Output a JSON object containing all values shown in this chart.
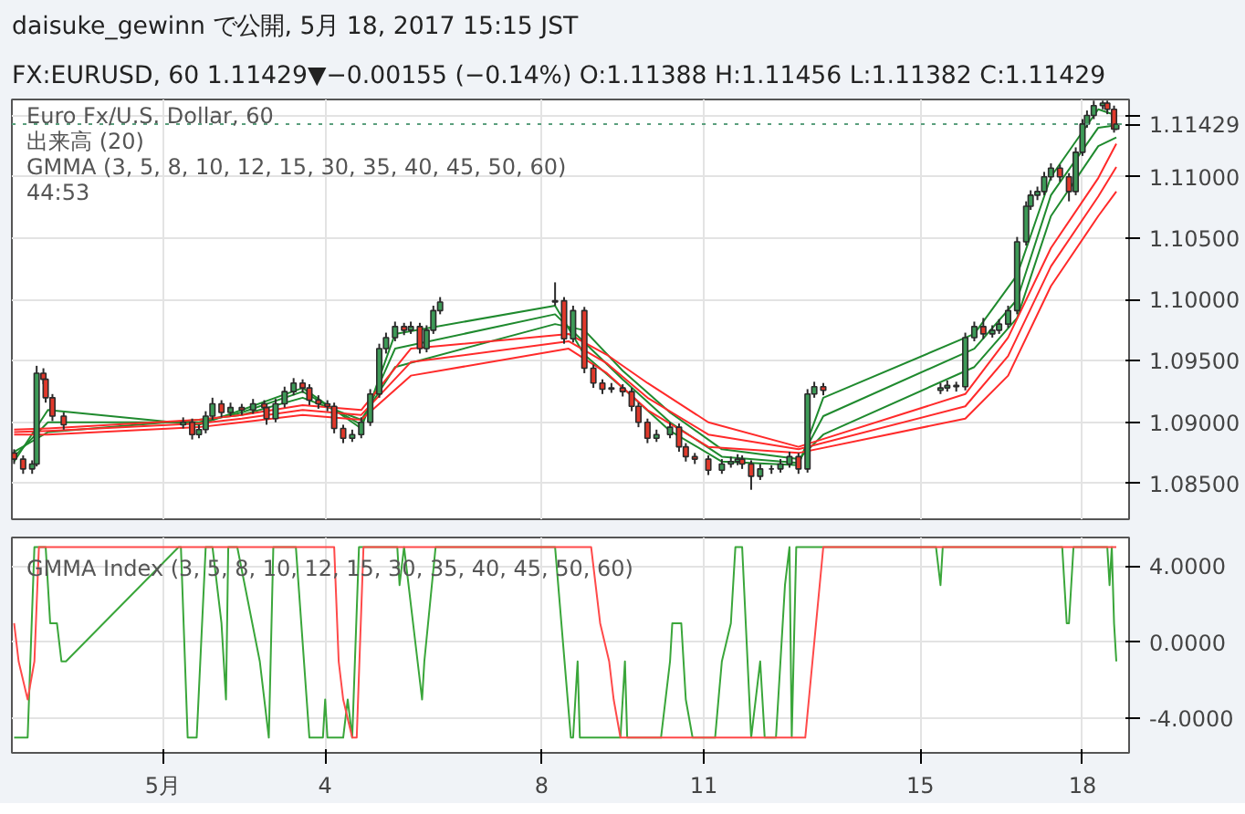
{
  "chart_data": [
    {
      "type": "candlestick",
      "title": "daisuke_gewinn で公開, 5月 18, 2017 15:15 JST",
      "subtitle": "FX:EURUSD, 60 1.11429▼−0.00155 (−0.14%) O:1.11388 H:1.11456 L:1.11382 C:1.11429",
      "annotations": [
        "Euro Fx/U.S. Dollar, 60",
        "出来高 (20)",
        "GMMA (3, 5, 8, 10, 12, 15, 30, 35, 40, 45, 50, 60)",
        "44:53"
      ],
      "x": [
        "2017-04-28T06:00",
        "2017-04-28T10:00",
        "2017-04-28T14:00",
        "2017-04-28T16:00",
        "2017-04-28T19:00",
        "2017-04-28T20:00",
        "2017-04-28T23:00",
        "2017-04-29T04:00",
        "2017-05-01T09:00",
        "2017-05-01T13:00",
        "2017-05-01T16:00",
        "2017-05-01T19:00",
        "2017-05-01T22:00",
        "2017-05-02T02:00",
        "2017-05-02T06:00",
        "2017-05-02T11:00",
        "2017-05-02T16:00",
        "2017-05-02T21:00",
        "2017-05-02T22:00",
        "2017-05-03T02:00",
        "2017-05-03T06:00",
        "2017-05-03T10:00",
        "2017-05-03T14:00",
        "2017-05-03T17:00",
        "2017-05-03T21:00",
        "2017-05-04T01:00",
        "2017-05-04T04:00",
        "2017-05-04T08:00",
        "2017-05-04T12:00",
        "2017-05-04T16:00",
        "2017-05-04T20:00",
        "2017-05-05T00:00",
        "2017-05-05T03:00",
        "2017-05-05T07:00",
        "2017-05-05T11:00",
        "2017-05-05T14:00",
        "2017-05-05T18:00",
        "2017-05-05T21:00",
        "2017-05-06T00:00",
        "2017-05-06T03:00",
        "2017-05-08T06:00",
        "2017-05-08T10:00",
        "2017-05-08T14:00",
        "2017-05-08T19:00",
        "2017-05-08T23:00",
        "2017-05-09T03:00",
        "2017-05-09T07:00",
        "2017-05-09T12:00",
        "2017-05-09T16:00",
        "2017-05-09T19:00",
        "2017-05-09T23:00",
        "2017-05-10T03:00",
        "2017-05-10T09:00",
        "2017-05-10T13:00",
        "2017-05-10T16:00",
        "2017-05-10T20:00",
        "2017-05-11T02:00",
        "2017-05-11T08:00",
        "2017-05-11T12:00",
        "2017-05-11T15:00",
        "2017-05-11T17:00",
        "2017-05-11T21:00",
        "2017-05-12T01:00",
        "2017-05-12T06:00",
        "2017-05-12T10:00",
        "2017-05-12T14:00",
        "2017-05-12T18:00",
        "2017-05-12T22:00",
        "2017-05-13T01:00",
        "2017-05-13T05:00",
        "2017-05-15T09:00",
        "2017-05-15T12:00",
        "2017-05-15T16:00",
        "2017-05-15T20:00",
        "2017-05-16T00:00",
        "2017-05-16T04:00",
        "2017-05-16T08:00",
        "2017-05-16T11:00",
        "2017-05-16T15:00",
        "2017-05-16T19:00",
        "2017-05-16T23:00",
        "2017-05-17T01:00",
        "2017-05-17T04:00",
        "2017-05-17T07:00",
        "2017-05-17T10:00",
        "2017-05-17T14:00",
        "2017-05-17T18:00",
        "2017-05-17T21:00",
        "2017-05-18T00:00",
        "2017-05-18T02:00",
        "2017-05-18T05:00",
        "2017-05-18T09:00",
        "2017-05-18T11:00",
        "2017-05-18T14:00",
        "2017-05-18T15:00"
      ],
      "ohlc": [
        [
          1.0875,
          1.0878,
          1.0866,
          1.087
        ],
        [
          1.087,
          1.0873,
          1.0858,
          1.0862
        ],
        [
          1.0862,
          1.0869,
          1.0858,
          1.0866
        ],
        [
          1.0866,
          1.0946,
          1.0864,
          1.094
        ],
        [
          1.094,
          1.0944,
          1.0931,
          1.0935
        ],
        [
          1.0935,
          1.0938,
          1.0916,
          1.092
        ],
        [
          1.092,
          1.0923,
          1.0901,
          1.0905
        ],
        [
          1.0905,
          1.0908,
          1.0894,
          1.0898
        ],
        [
          1.0898,
          1.0904,
          1.0895,
          1.09
        ],
        [
          1.09,
          1.0903,
          1.0886,
          1.089
        ],
        [
          1.089,
          1.0898,
          1.0887,
          1.0894
        ],
        [
          1.0894,
          1.0909,
          1.0891,
          1.0905
        ],
        [
          1.0905,
          1.092,
          1.0902,
          1.0915
        ],
        [
          1.0915,
          1.0918,
          1.0904,
          1.0908
        ],
        [
          1.0908,
          1.0916,
          1.0905,
          1.0912
        ],
        [
          1.0912,
          1.0915,
          1.0906,
          1.091
        ],
        [
          1.091,
          1.0919,
          1.0907,
          1.0915
        ],
        [
          1.0915,
          1.0918,
          1.0908,
          1.0912
        ],
        [
          1.0912,
          1.0915,
          1.0898,
          1.0903
        ],
        [
          1.0903,
          1.0919,
          1.09,
          1.0915
        ],
        [
          1.0915,
          1.0929,
          1.0912,
          1.0925
        ],
        [
          1.0925,
          1.0936,
          1.0922,
          1.0932
        ],
        [
          1.0932,
          1.0935,
          1.0924,
          1.0928
        ],
        [
          1.0928,
          1.0931,
          1.0914,
          1.0918
        ],
        [
          1.0918,
          1.0922,
          1.0911,
          1.0915
        ],
        [
          1.0915,
          1.0918,
          1.0909,
          1.0913
        ],
        [
          1.0913,
          1.0916,
          1.0891,
          1.0895
        ],
        [
          1.0895,
          1.0898,
          1.0883,
          1.0887
        ],
        [
          1.0887,
          1.0894,
          1.0884,
          1.089
        ],
        [
          1.089,
          1.0904,
          1.0887,
          1.09
        ],
        [
          1.09,
          1.0927,
          1.0897,
          1.0923
        ],
        [
          1.0923,
          1.0964,
          1.092,
          1.096
        ],
        [
          1.096,
          1.0973,
          1.0956,
          1.0969
        ],
        [
          1.0969,
          1.0982,
          1.0966,
          1.0978
        ],
        [
          1.0978,
          1.0981,
          1.0971,
          1.0975
        ],
        [
          1.0975,
          1.0982,
          1.0972,
          1.0978
        ],
        [
          1.0978,
          1.0981,
          1.0956,
          1.096
        ],
        [
          1.096,
          1.0979,
          1.0957,
          1.0975
        ],
        [
          1.0975,
          1.0995,
          1.0972,
          1.0991
        ],
        [
          1.0991,
          1.1002,
          1.0988,
          1.0998
        ],
        [
          1.0998,
          1.1014,
          1.0995,
          1.0999
        ],
        [
          1.0999,
          1.1002,
          1.0964,
          1.0968
        ],
        [
          1.0968,
          1.0995,
          1.0965,
          1.0991
        ],
        [
          1.0991,
          1.0994,
          1.094,
          1.0944
        ],
        [
          1.0944,
          1.0947,
          1.0928,
          1.0932
        ],
        [
          1.0932,
          1.0935,
          1.0923,
          1.0927
        ],
        [
          1.0927,
          1.0932,
          1.0924,
          1.0928
        ],
        [
          1.0928,
          1.0931,
          1.0921,
          1.0925
        ],
        [
          1.0925,
          1.0928,
          1.0909,
          1.0913
        ],
        [
          1.0913,
          1.0916,
          1.0896,
          1.09
        ],
        [
          1.09,
          1.0903,
          1.0883,
          1.0887
        ],
        [
          1.0887,
          1.0894,
          1.0884,
          1.089
        ],
        [
          1.089,
          1.09,
          1.0887,
          1.0896
        ],
        [
          1.0896,
          1.0899,
          1.0876,
          1.088
        ],
        [
          1.088,
          1.0883,
          1.0868,
          1.0872
        ],
        [
          1.0872,
          1.0875,
          1.0866,
          1.087
        ],
        [
          1.087,
          1.0873,
          1.0857,
          1.0861
        ],
        [
          1.0861,
          1.087,
          1.0858,
          1.0866
        ],
        [
          1.0866,
          1.0872,
          1.0863,
          1.0868
        ],
        [
          1.0868,
          1.0874,
          1.0865,
          1.087
        ],
        [
          1.087,
          1.0873,
          1.0862,
          1.0866
        ],
        [
          1.0866,
          1.0869,
          1.0845,
          1.0856
        ],
        [
          1.0856,
          1.0866,
          1.0853,
          1.0862
        ],
        [
          1.0862,
          1.0865,
          1.0858,
          1.0862
        ],
        [
          1.0862,
          1.087,
          1.0859,
          1.0866
        ],
        [
          1.0866,
          1.0876,
          1.0863,
          1.0872
        ],
        [
          1.0872,
          1.0875,
          1.0858,
          1.0862
        ],
        [
          1.0862,
          1.0927,
          1.0859,
          1.0923
        ],
        [
          1.0923,
          1.0933,
          1.092,
          1.0929
        ],
        [
          1.0929,
          1.0932,
          1.0922,
          1.0926
        ],
        [
          1.0926,
          1.0932,
          1.0923,
          1.0928
        ],
        [
          1.0928,
          1.0934,
          1.0925,
          1.093
        ],
        [
          1.093,
          1.0933,
          1.0925,
          1.0929
        ],
        [
          1.0929,
          1.0973,
          1.0926,
          1.0969
        ],
        [
          1.0969,
          1.0982,
          1.0966,
          1.0978
        ],
        [
          1.0978,
          1.0985,
          1.0968,
          1.0972
        ],
        [
          1.0972,
          1.0979,
          1.0969,
          1.0975
        ],
        [
          1.0975,
          1.0984,
          1.0972,
          1.098
        ],
        [
          1.098,
          1.0995,
          1.0977,
          1.0991
        ],
        [
          1.0991,
          1.1051,
          1.0988,
          1.1047
        ],
        [
          1.1047,
          1.108,
          1.1044,
          1.1076
        ],
        [
          1.1076,
          1.1089,
          1.1073,
          1.1085
        ],
        [
          1.1085,
          1.1092,
          1.1081,
          1.1088
        ],
        [
          1.1088,
          1.1104,
          1.1085,
          1.11
        ],
        [
          1.11,
          1.1111,
          1.1097,
          1.1107
        ],
        [
          1.1107,
          1.111,
          1.1096,
          1.11
        ],
        [
          1.11,
          1.1103,
          1.108,
          1.1088
        ],
        [
          1.1088,
          1.1124,
          1.1085,
          1.112
        ],
        [
          1.112,
          1.1147,
          1.1117,
          1.1143
        ],
        [
          1.1143,
          1.1154,
          1.114,
          1.115
        ],
        [
          1.115,
          1.1162,
          1.1147,
          1.1158
        ],
        [
          1.1158,
          1.1162,
          1.1155,
          1.116
        ],
        [
          1.116,
          1.1162,
          1.1151,
          1.1155
        ],
        [
          1.1155,
          1.1158,
          1.1136,
          1.11388
        ],
        [
          1.11388,
          1.11456,
          1.11382,
          1.11429
        ]
      ],
      "series": [
        {
          "type": "line",
          "color": "#1f8a2e",
          "x": [
            "2017-04-28T06:00",
            "2017-04-28T21:00",
            "2017-05-01T16:00",
            "2017-05-02T11:00",
            "2017-05-03T14:00",
            "2017-05-04T16:00",
            "2017-05-05T07:00",
            "2017-05-08T06:00",
            "2017-05-08T19:00",
            "2017-05-09T12:00",
            "2017-05-10T09:00",
            "2017-05-11T08:00",
            "2017-05-12T18:00",
            "2017-05-13T05:00",
            "2017-05-16T00:00",
            "2017-05-16T19:00",
            "2017-05-17T10:00",
            "2017-05-18T07:00",
            "2017-05-18T15:00"
          ],
          "values": [
            1.0868,
            1.091,
            1.0898,
            1.091,
            1.0928,
            1.0895,
            1.0972,
            1.0995,
            1.0955,
            1.0928,
            1.0893,
            1.0868,
            1.0865,
            1.092,
            1.0972,
            1.102,
            1.11,
            1.1155,
            1.115
          ]
        },
        {
          "type": "line",
          "color": "#1f8a2e",
          "x": [
            "2017-04-28T06:00",
            "2017-04-28T21:00",
            "2017-05-01T16:00",
            "2017-05-02T11:00",
            "2017-05-03T14:00",
            "2017-05-04T16:00",
            "2017-05-05T07:00",
            "2017-05-08T06:00",
            "2017-05-08T19:00",
            "2017-05-09T12:00",
            "2017-05-10T09:00",
            "2017-05-11T08:00",
            "2017-05-12T18:00",
            "2017-05-13T05:00",
            "2017-05-16T00:00",
            "2017-05-16T19:00",
            "2017-05-17T10:00",
            "2017-05-18T07:00",
            "2017-05-18T15:00"
          ],
          "values": [
            1.0872,
            1.09,
            1.09,
            1.0908,
            1.0925,
            1.0898,
            1.096,
            1.0988,
            1.0965,
            1.0935,
            1.09,
            1.0872,
            1.0867,
            1.0905,
            1.096,
            1.1,
            1.1085,
            1.114,
            1.1142
          ]
        },
        {
          "type": "line",
          "color": "#1f8a2e",
          "x": [
            "2017-04-28T06:00",
            "2017-04-28T21:00",
            "2017-05-01T16:00",
            "2017-05-02T11:00",
            "2017-05-03T14:00",
            "2017-05-04T16:00",
            "2017-05-05T07:00",
            "2017-05-08T06:00",
            "2017-05-08T19:00",
            "2017-05-09T12:00",
            "2017-05-10T09:00",
            "2017-05-11T08:00",
            "2017-05-12T18:00",
            "2017-05-13T05:00",
            "2017-05-16T00:00",
            "2017-05-16T19:00",
            "2017-05-17T10:00",
            "2017-05-18T07:00",
            "2017-05-18T15:00"
          ],
          "values": [
            1.0876,
            1.0892,
            1.0902,
            1.0906,
            1.092,
            1.0902,
            1.0945,
            1.098,
            1.0975,
            1.0942,
            1.0908,
            1.0878,
            1.087,
            1.089,
            1.0945,
            1.0985,
            1.1068,
            1.1125,
            1.1132
          ]
        },
        {
          "type": "line",
          "color": "#ff2a2a",
          "x": [
            "2017-04-28T06:00",
            "2017-04-28T21:00",
            "2017-05-01T16:00",
            "2017-05-02T11:00",
            "2017-05-03T14:00",
            "2017-05-04T16:00",
            "2017-05-05T14:00",
            "2017-05-08T12:00",
            "2017-05-09T05:00",
            "2017-05-09T23:00",
            "2017-05-11T02:00",
            "2017-05-12T18:00",
            "2017-05-15T20:00",
            "2017-05-16T15:00",
            "2017-05-17T10:00",
            "2017-05-18T07:00",
            "2017-05-18T15:00"
          ],
          "values": [
            1.0894,
            1.0895,
            1.0902,
            1.0906,
            1.0914,
            1.091,
            1.096,
            1.0972,
            1.0955,
            1.0932,
            1.09,
            1.088,
            1.0923,
            1.0969,
            1.1042,
            1.1099,
            1.1127
          ]
        },
        {
          "type": "line",
          "color": "#ff2a2a",
          "x": [
            "2017-04-28T06:00",
            "2017-04-28T21:00",
            "2017-05-01T16:00",
            "2017-05-02T11:00",
            "2017-05-03T14:00",
            "2017-05-04T16:00",
            "2017-05-05T14:00",
            "2017-05-08T12:00",
            "2017-05-09T05:00",
            "2017-05-09T23:00",
            "2017-05-11T02:00",
            "2017-05-12T18:00",
            "2017-05-15T20:00",
            "2017-05-16T15:00",
            "2017-05-17T10:00",
            "2017-05-18T07:00",
            "2017-05-18T15:00"
          ],
          "values": [
            1.0892,
            1.0893,
            1.0899,
            1.0903,
            1.091,
            1.0906,
            1.0949,
            1.0966,
            1.0948,
            1.092,
            1.089,
            1.0878,
            1.0913,
            1.0954,
            1.1027,
            1.1084,
            1.1108
          ]
        },
        {
          "type": "line",
          "color": "#ff2a2a",
          "x": [
            "2017-04-28T06:00",
            "2017-04-28T21:00",
            "2017-05-01T16:00",
            "2017-05-02T11:00",
            "2017-05-03T14:00",
            "2017-05-04T16:00",
            "2017-05-05T14:00",
            "2017-05-08T12:00",
            "2017-05-09T05:00",
            "2017-05-09T23:00",
            "2017-05-11T02:00",
            "2017-05-12T18:00",
            "2017-05-15T20:00",
            "2017-05-16T15:00",
            "2017-05-17T10:00",
            "2017-05-18T07:00",
            "2017-05-18T15:00"
          ],
          "values": [
            1.089,
            1.089,
            1.0896,
            1.09,
            1.0906,
            1.0902,
            1.0938,
            1.096,
            1.094,
            1.091,
            1.088,
            1.0875,
            1.0903,
            1.0938,
            1.1011,
            1.1068,
            1.1088
          ]
        }
      ],
      "xlim": [
        "2017-04-28T05:00",
        "2017-05-18T20:40"
      ],
      "xticks": [
        {
          "value": "2017-05-01",
          "label": null
        },
        {
          "value": "2017-05-04",
          "label": null
        },
        {
          "value": "2017-05-08",
          "label": null
        },
        {
          "value": "2017-05-11",
          "label": null
        },
        {
          "value": "2017-05-15",
          "label": null
        },
        {
          "value": "2017-05-18",
          "label": null
        }
      ],
      "ylim": [
        1.0821,
        1.1163
      ],
      "yticks": [
        {
          "value": 1.085,
          "label": "1.08500"
        },
        {
          "value": 1.09,
          "label": "1.09000"
        },
        {
          "value": 1.095,
          "label": "1.09500"
        },
        {
          "value": 1.1,
          "label": "1.10000"
        },
        {
          "value": 1.105,
          "label": "1.10500"
        },
        {
          "value": 1.11,
          "label": "1.11000"
        },
        {
          "value": 1.115,
          "label": null
        }
      ],
      "tick_labels": "y",
      "grid": true,
      "ref_lines": [
        {
          "axis": "y",
          "value": 1.11429,
          "label": "1.11429",
          "color": "#5a9f7d",
          "line_style": "dotted"
        }
      ]
    },
    {
      "type": "line",
      "title": "GMMA Index (3, 5, 8, 10, 12, 15, 30, 35, 40, 45, 50, 60)",
      "series": [
        {
          "color": "#3aa63a",
          "x": [
            "2017-04-28T06:00",
            "2017-04-28T12:00",
            "2017-04-28T15:00",
            "2017-04-28T20:00",
            "2017-04-28T22:00",
            "2017-04-29T01:00",
            "2017-04-29T03:00",
            "2017-04-29T05:00",
            "2017-05-01T07:00",
            "2017-05-01T08:00",
            "2017-05-01T11:00",
            "2017-05-01T15:00",
            "2017-05-01T19:00",
            "2017-05-01T22:00",
            "2017-05-02T02:00",
            "2017-05-02T04:00",
            "2017-05-02T05:00",
            "2017-05-02T09:00",
            "2017-05-02T19:00",
            "2017-05-02T23:00",
            "2017-05-03T01:00",
            "2017-05-03T11:00",
            "2017-05-03T17:00",
            "2017-05-03T23:00",
            "2017-05-04T00:00",
            "2017-05-04T01:00",
            "2017-05-04T08:00",
            "2017-05-04T10:00",
            "2017-05-04T12:00",
            "2017-05-04T15:00",
            "2017-05-05T08:00",
            "2017-05-05T09:00",
            "2017-05-05T11:00",
            "2017-05-05T17:00",
            "2017-05-05T19:00",
            "2017-05-05T20:00",
            "2017-05-06T01:00",
            "2017-05-08T06:00",
            "2017-05-08T13:00",
            "2017-05-08T14:00",
            "2017-05-08T16:00",
            "2017-05-08T17:00",
            "2017-05-09T11:00",
            "2017-05-09T13:00",
            "2017-05-09T14:00",
            "2017-05-10T05:00",
            "2017-05-10T09:00",
            "2017-05-10T10:00",
            "2017-05-10T14:00",
            "2017-05-10T16:00",
            "2017-05-10T19:00",
            "2017-05-11T05:00",
            "2017-05-11T08:00",
            "2017-05-11T12:00",
            "2017-05-11T14:00",
            "2017-05-11T17:00",
            "2017-05-11T21:00",
            "2017-05-11T23:00",
            "2017-05-12T01:00",
            "2017-05-12T03:00",
            "2017-05-12T08:00",
            "2017-05-12T12:00",
            "2017-05-12T14:00",
            "2017-05-12T15:00",
            "2017-05-12T17:00",
            "2017-05-15T07:00",
            "2017-05-15T09:00",
            "2017-05-15T10:00",
            "2017-05-17T15:00",
            "2017-05-17T17:00",
            "2017-05-17T18:00",
            "2017-05-17T20:00",
            "2017-05-18T11:00",
            "2017-05-18T12:00",
            "2017-05-18T13:00",
            "2017-05-18T14:00",
            "2017-05-18T15:00"
          ],
          "values": [
            -5,
            -5,
            5,
            5,
            1,
            1,
            -1,
            -1,
            5,
            5,
            -5,
            -5,
            5,
            5,
            1,
            -3,
            5,
            5,
            -1,
            -5,
            5,
            5,
            -5,
            -5,
            -3,
            -5,
            -5,
            -3,
            -5,
            5,
            5,
            3,
            5,
            -1,
            -3,
            -1,
            5,
            5,
            -5,
            -5,
            -1,
            -5,
            -5,
            -1,
            -5,
            -5,
            -1,
            1,
            1,
            -3,
            -5,
            -5,
            -1,
            1,
            5,
            5,
            -5,
            -3,
            -1,
            -5,
            -5,
            3,
            5,
            -5,
            5,
            5,
            3,
            5,
            5,
            1,
            1,
            5,
            5,
            3,
            5,
            1,
            -1
          ]
        },
        {
          "color": "#ff4a4a",
          "x": [
            "2017-04-28T06:00",
            "2017-04-28T08:00",
            "2017-04-28T12:00",
            "2017-04-28T15:00",
            "2017-04-28T17:00",
            "2017-05-04T04:00",
            "2017-05-04T06:00",
            "2017-05-04T08:00",
            "2017-05-04T12:00",
            "2017-05-04T14:00",
            "2017-05-04T17:00",
            "2017-05-08T22:00",
            "2017-05-09T02:00",
            "2017-05-09T06:00",
            "2017-05-09T08:00",
            "2017-05-09T11:00",
            "2017-05-12T21:00",
            "2017-05-13T05:00",
            "2017-05-18T15:00"
          ],
          "values": [
            1,
            -1,
            -3,
            -1,
            5,
            5,
            -1,
            -3,
            -5,
            -5,
            5,
            5,
            1,
            -1,
            -3,
            -5,
            -5,
            5,
            5
          ]
        }
      ],
      "xlim": [
        "2017-04-28T05:00",
        "2017-05-18T20:40"
      ],
      "xticks": [
        {
          "value": "2017-05-01",
          "label": "5月"
        },
        {
          "value": "2017-05-04",
          "label": "4"
        },
        {
          "value": "2017-05-08",
          "label": "8"
        },
        {
          "value": "2017-05-11",
          "label": "11"
        },
        {
          "value": "2017-05-15",
          "label": "15"
        },
        {
          "value": "2017-05-18",
          "label": "18"
        }
      ],
      "ylim": [
        -5.8,
        5.5
      ],
      "yticks": [
        {
          "value": 4,
          "label": "4.0000"
        },
        {
          "value": 0,
          "label": "0.0000"
        },
        {
          "value": -4,
          "label": "-4.0000"
        }
      ],
      "grid": true
    }
  ]
}
